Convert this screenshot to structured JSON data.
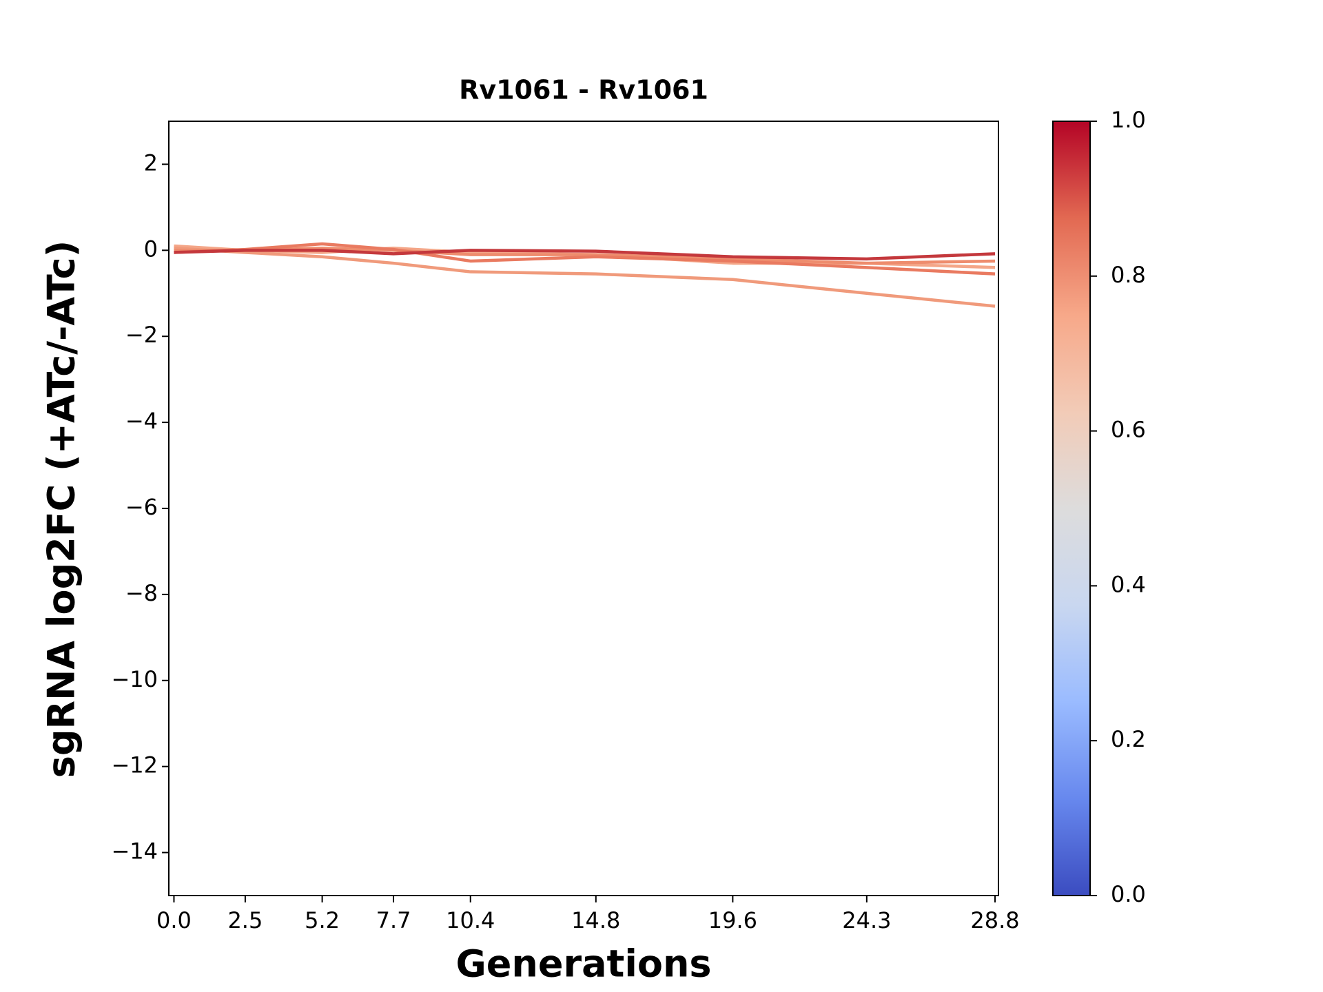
{
  "chart_data": {
    "type": "line",
    "title": "Rv1061 - Rv1061",
    "x_label": "Generations",
    "y_label": "sgRNA log2FC (+ATc/-ATc)",
    "x": [
      0,
      2.5,
      5.2,
      7.7,
      10.4,
      14.8,
      19.6,
      24.3,
      28.8
    ],
    "xlim": [
      -0.18,
      28.92
    ],
    "xticks": [
      {
        "value": 0,
        "label": "0.0"
      },
      2.5,
      5.2,
      7.7,
      10.4,
      14.8,
      19.6,
      24.3,
      28.8
    ],
    "ylim": [
      -15,
      3
    ],
    "yticks": [
      {
        "value": -14,
        "label": "−14"
      },
      {
        "value": -12,
        "label": "−12"
      },
      {
        "value": -10,
        "label": "−10"
      },
      {
        "value": -8,
        "label": "−8"
      },
      {
        "value": -6,
        "label": "−6"
      },
      {
        "value": -4,
        "label": "−4"
      },
      {
        "value": -2,
        "label": "−2"
      },
      0,
      2
    ],
    "grid": false,
    "series": [
      {
        "color": "#f4a688",
        "values": [
          0.1,
          0.0,
          -0.05,
          0.05,
          -0.05,
          -0.1,
          -0.3,
          -0.3,
          -0.4
        ]
      },
      {
        "color": "#f09a7b",
        "values": [
          0.05,
          -0.05,
          -0.15,
          -0.3,
          -0.5,
          -0.55,
          -0.68,
          -1.0,
          -1.3
        ]
      },
      {
        "color": "#ee8c6d",
        "values": [
          0.0,
          0.0,
          0.05,
          0.0,
          -0.1,
          -0.1,
          -0.2,
          -0.3,
          -0.25
        ]
      },
      {
        "color": "#e97a60",
        "values": [
          -0.05,
          0.02,
          0.15,
          0.02,
          -0.25,
          -0.15,
          -0.25,
          -0.4,
          -0.55
        ]
      },
      {
        "color": "#c4383c",
        "values": [
          -0.05,
          0.0,
          0.0,
          -0.08,
          0.0,
          -0.02,
          -0.15,
          -0.2,
          -0.08
        ]
      }
    ],
    "colorbar": {
      "lim": [
        0,
        1
      ],
      "ticks": [
        {
          "value": 0,
          "label": "0.0"
        },
        0.2,
        0.4,
        0.6,
        0.8,
        {
          "value": 1,
          "label": "1.0"
        }
      ],
      "colors": [
        "#3b4cc0",
        "#6788ee",
        "#9abbff",
        "#c9d7f0",
        "#dddcdc",
        "#f2cbb7",
        "#f7a889",
        "#e26952",
        "#b40426"
      ]
    }
  }
}
